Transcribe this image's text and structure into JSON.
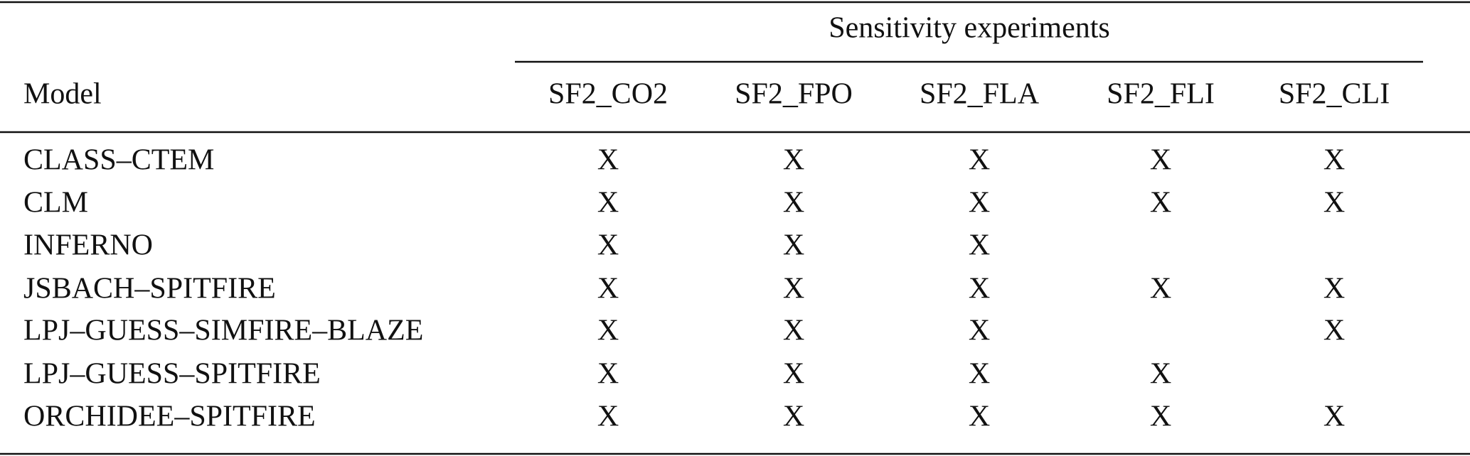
{
  "table": {
    "group_header": "Sensitivity experiments",
    "columns": [
      "Model",
      "SF2_CO2",
      "SF2_FPO",
      "SF2_FLA",
      "SF2_FLI",
      "SF2_CLI"
    ],
    "rows": [
      [
        "CLASS–CTEM",
        "X",
        "X",
        "X",
        "X",
        "X"
      ],
      [
        "CLM",
        "X",
        "X",
        "X",
        "X",
        "X"
      ],
      [
        "INFERNO",
        "X",
        "X",
        "X",
        null,
        null
      ],
      [
        "JSBACH–SPITFIRE",
        "X",
        "X",
        "X",
        "X",
        "X"
      ],
      [
        "LPJ–GUESS–SIMFIRE–BLAZE",
        "X",
        "X",
        "X",
        null,
        "X"
      ],
      [
        "LPJ–GUESS–SPITFIRE",
        "X",
        "X",
        "X",
        "X",
        null
      ],
      [
        "ORCHIDEE–SPITFIRE",
        "X",
        "X",
        "X",
        "X",
        "X"
      ]
    ]
  }
}
